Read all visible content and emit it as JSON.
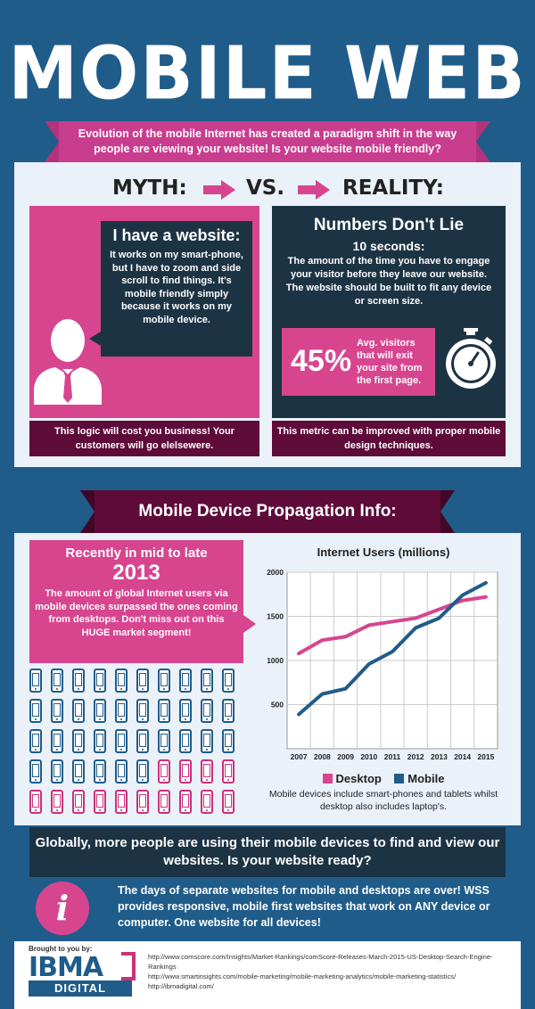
{
  "header": {
    "title": "MOBILE WEB",
    "intro": "Evolution of the mobile Internet has created a paradigm shift in the way people are viewing your website! Is your website mobile friendly?"
  },
  "comparison": {
    "myth_label": "MYTH:",
    "vs_label": "VS.",
    "reality_label": "REALITY:"
  },
  "myth": {
    "heading": "I have a website:",
    "text": "It works on my smart-phone, but I have to zoom and side scroll to find things. It's mobile friendly simply because it works on my mobile device.",
    "footer": "This logic will cost you business! Your customers will go elelsewere."
  },
  "reality": {
    "heading": "Numbers Don't Lie",
    "subheading": "10 seconds:",
    "text": "The amount of the time you have to engage your visitor before they leave our website. The website should be built to fit any device or screen size.",
    "stat_value": "45%",
    "stat_text": "Avg. visitors that will exit your site from the first page.",
    "footer": "This metric can be improved with proper mobile design techniques."
  },
  "propagation": {
    "banner": "Mobile Device Propagation Info:",
    "recent_line1": "Recently in mid to late",
    "recent_year": "2013",
    "recent_text": "The amount of global Internet users via mobile devices surpassed the ones coming from desktops. Don't miss out on this HUGE market segment!",
    "phones": {
      "rows": 5,
      "cols": 10,
      "pink_count": 14
    }
  },
  "chart_data": {
    "type": "line",
    "title": "Internet Users (millions)",
    "x": [
      "2007",
      "2008",
      "2009",
      "2010",
      "2011",
      "2012",
      "2013",
      "2014",
      "2015"
    ],
    "series": [
      {
        "name": "Desktop",
        "color": "#d7458f",
        "values": [
          1080,
          1230,
          1270,
          1400,
          1440,
          1480,
          1580,
          1680,
          1720
        ]
      },
      {
        "name": "Mobile",
        "color": "#1f5c8a",
        "values": [
          390,
          620,
          680,
          960,
          1100,
          1370,
          1480,
          1740,
          1880
        ]
      }
    ],
    "yticks": [
      500,
      1000,
      1500,
      2000
    ],
    "ylim": [
      0,
      2000
    ],
    "grid": true,
    "legend": "bottom",
    "note": "Mobile devices include smart-phones and tablets whilst desktop also includes laptop's."
  },
  "closing": {
    "banner": "Globally, more people are using their mobile devices to find and view our websites. Is your website ready?",
    "info_icon": "i",
    "info_text": "The days of separate websites for mobile and desktops are over! WSS provides responsive, mobile first websites that work on ANY device or computer. One website for all devices!"
  },
  "footer": {
    "brought_by": "Brought to you by:",
    "logo_main": "IBMA",
    "logo_sub": "DIGITAL",
    "urls": [
      "http://www.comscore.com/Insights/Market-Rankings/comScore-Releases-March-2015-US-Desktop-Search-Engine-Rankings",
      "http://www.smartinsights.com/mobile-marketing/mobile-marketing-analytics/mobile-marketing-statistics/",
      "http://ibmadigital.com/"
    ]
  },
  "colors": {
    "pink": "#d7458f",
    "navy": "#1c3344",
    "blue": "#1f5c8a",
    "maroon": "#5e0b39"
  }
}
